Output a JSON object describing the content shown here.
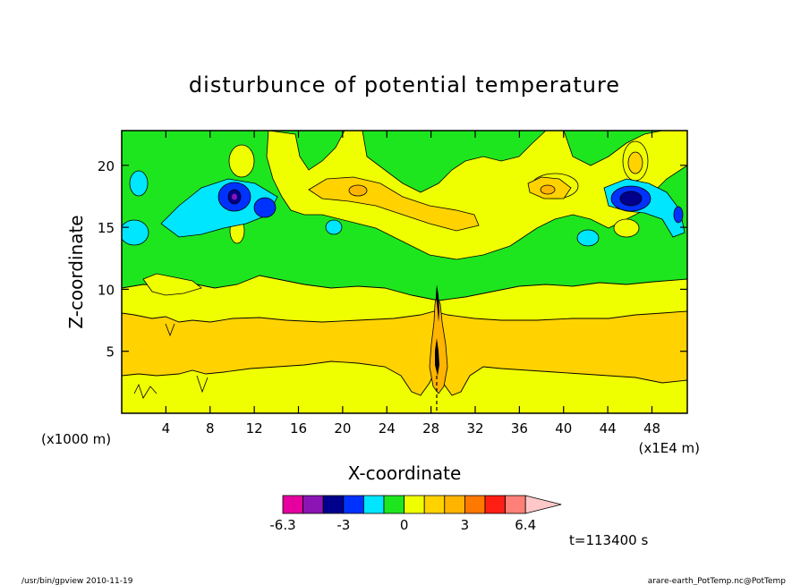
{
  "chart_data": {
    "type": "heatmap",
    "title": "disturbunce of potential temperature",
    "xlabel": "X-coordinate",
    "ylabel": "Z-coordinate",
    "x_unit_left": "(x1000 m)",
    "x_unit_right": "(x1E4 m)",
    "x_ticks": [
      "4",
      "8",
      "12",
      "16",
      "20",
      "24",
      "28",
      "32",
      "36",
      "40",
      "44",
      "48"
    ],
    "x_tick_values": [
      4,
      8,
      12,
      16,
      20,
      24,
      28,
      32,
      36,
      40,
      44,
      48
    ],
    "y_ticks": [
      "5",
      "10",
      "15",
      "20"
    ],
    "y_tick_values": [
      5,
      10,
      15,
      20
    ],
    "xlim": [
      0,
      51.2
    ],
    "ylim": [
      0,
      22.8
    ],
    "colorbar": {
      "colors": [
        "#e600a0",
        "#8c14b4",
        "#00008c",
        "#0032ff",
        "#00e6ff",
        "#1ee61e",
        "#f0ff00",
        "#ffd200",
        "#ffb400",
        "#ff7800",
        "#ff1e14",
        "#ff8078",
        "#ffc8c8"
      ],
      "tick_labels": [
        "-6.3",
        "-3",
        "0",
        "3",
        "6.4"
      ]
    },
    "time_label": "t=113400 s",
    "footer_left": "/usr/bin/gpview   2010-11-19",
    "footer_right": "arare-earth_PotTemp.nc@PotTemp",
    "layers": [
      {
        "band": "green",
        "z_range": [
          10.2,
          22.8
        ],
        "level": "-0.5 to 0.5"
      },
      {
        "band": "yellow",
        "z_range": [
          8.3,
          10.2
        ],
        "level": "0.5 to 1.5"
      },
      {
        "band": "orange",
        "z_range": [
          3.8,
          8.3
        ],
        "level": "1.5 to 2.5"
      },
      {
        "band": "yellow",
        "z_range": [
          0,
          3.8
        ],
        "level": "0.5 to 1.5"
      }
    ],
    "features": [
      {
        "x": 10.5,
        "z": 17.5,
        "level": "min",
        "color": "#00008c"
      },
      {
        "x": 46.2,
        "z": 17.2,
        "level": "min",
        "color": "#00008c"
      },
      {
        "x": 28.4,
        "z": 5.5,
        "level": "vertical plume",
        "color": "#000000"
      }
    ]
  }
}
